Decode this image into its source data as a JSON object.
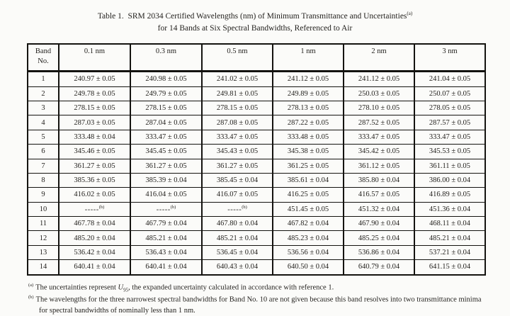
{
  "page": {
    "background_color": "#fbfbf9",
    "text_color": "#24221f",
    "border_color": "#141310"
  },
  "title": {
    "line1_main": "Table 1.  SRM 2034 Certified Wavelengths (nm) of Minimum Transmittance and Uncertainties",
    "line1_sup": "(a)",
    "line2": "for 14 Bands at Six Spectral Bandwidths, Referenced to Air"
  },
  "table": {
    "header": {
      "band_col_line1": "Band",
      "band_col_line2": "No.",
      "bandwidth_cols": [
        "0.1 nm",
        "0.3 nm",
        "0.5 nm",
        "1 nm",
        "2 nm",
        "3 nm"
      ]
    },
    "not_given_dash": "-----",
    "not_given_note": "(b)",
    "rows": [
      {
        "band": "1",
        "values": [
          "240.97 ± 0.05",
          "240.98 ± 0.05",
          "241.02 ± 0.05",
          "241.12 ± 0.05",
          "241.12 ± 0.05",
          "241.04 ± 0.05"
        ]
      },
      {
        "band": "2",
        "values": [
          "249.78 ± 0.05",
          "249.79 ± 0.05",
          "249.81 ± 0.05",
          "249.89 ± 0.05",
          "250.03 ± 0.05",
          "250.07 ± 0.05"
        ]
      },
      {
        "band": "3",
        "values": [
          "278.15 ± 0.05",
          "278.15 ± 0.05",
          "278.15 ± 0.05",
          "278.13 ± 0.05",
          "278.10 ± 0.05",
          "278.05 ± 0.05"
        ]
      },
      {
        "band": "4",
        "values": [
          "287.03 ± 0.05",
          "287.04 ± 0.05",
          "287.08 ± 0.05",
          "287.22 ± 0.05",
          "287.52 ± 0.05",
          "287.57 ± 0.05"
        ]
      },
      {
        "band": "5",
        "values": [
          "333.48 ± 0.04",
          "333.47 ± 0.05",
          "333.47 ± 0.05",
          "333.48 ± 0.05",
          "333.47 ± 0.05",
          "333.47 ± 0.05"
        ]
      },
      {
        "band": "6",
        "values": [
          "345.46 ± 0.05",
          "345.45 ± 0.05",
          "345.43 ± 0.05",
          "345.38 ± 0.05",
          "345.42 ± 0.05",
          "345.53 ± 0.05"
        ]
      },
      {
        "band": "7",
        "values": [
          "361.27 ± 0.05",
          "361.27 ± 0.05",
          "361.27 ± 0.05",
          "361.25 ± 0.05",
          "361.12 ± 0.05",
          "361.11 ± 0.05"
        ]
      },
      {
        "band": "8",
        "values": [
          "385.36 ± 0.05",
          "385.39 ± 0.04",
          "385.45 ± 0.04",
          "385.61 ± 0.04",
          "385.80 ± 0.04",
          "386.00 ± 0.04"
        ]
      },
      {
        "band": "9",
        "values": [
          "416.02 ± 0.05",
          "416.04 ± 0.05",
          "416.07 ± 0.05",
          "416.25 ± 0.05",
          "416.57 ± 0.05",
          "416.89 ± 0.05"
        ]
      },
      {
        "band": "10",
        "values": [
          null,
          null,
          null,
          "451.45 ± 0.05",
          "451.32 ± 0.04",
          "451.36 ± 0.04"
        ]
      },
      {
        "band": "11",
        "values": [
          "467.78 ± 0.04",
          "467.79 ± 0.04",
          "467.80 ± 0.04",
          "467.82 ± 0.04",
          "467.90 ± 0.04",
          "468.11 ± 0.04"
        ]
      },
      {
        "band": "12",
        "values": [
          "485.20 ± 0.04",
          "485.21 ± 0.04",
          "485.21 ± 0.04",
          "485.23 ± 0.04",
          "485.25 ± 0.04",
          "485.21 ± 0.04"
        ]
      },
      {
        "band": "13",
        "values": [
          "536.42 ± 0.04",
          "536.43 ± 0.04",
          "536.45 ± 0.04",
          "536.56 ± 0.04",
          "536.86 ± 0.04",
          "537.21 ± 0.04"
        ]
      },
      {
        "band": "14",
        "values": [
          "640.41 ± 0.04",
          "640.41 ± 0.04",
          "640.43 ± 0.04",
          "640.50 ± 0.04",
          "640.79 ± 0.04",
          "641.15 ± 0.04"
        ]
      }
    ]
  },
  "footnotes": {
    "a": {
      "marker": "(a)",
      "pre": "The uncertainties represent ",
      "u_symbol": "U",
      "u_sub": "95",
      "post": ", the expanded uncertainty calculated in accordance with reference 1."
    },
    "b": {
      "marker": "(b)",
      "text": "The wavelengths for the three narrowest spectral bandwidths for Band No. 10 are not given because this band resolves into two transmittance minima for spectral bandwidths of nominally less than 1 nm."
    }
  }
}
